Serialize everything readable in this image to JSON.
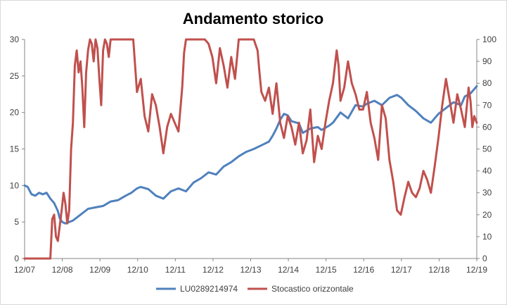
{
  "chart_data": {
    "type": "line",
    "title": "Andamento storico",
    "xlabel": "",
    "ylabel": "",
    "x_ticks": [
      "12/07",
      "12/08",
      "12/09",
      "12/10",
      "12/11",
      "12/12",
      "12/13",
      "12/14",
      "12/15",
      "12/16",
      "12/17",
      "12/18",
      "12/19"
    ],
    "x_range": [
      2007.917,
      2019.917
    ],
    "y_left": {
      "ylim": [
        0,
        30
      ],
      "ticks": [
        "0",
        "5",
        "10",
        "15",
        "20",
        "25",
        "30"
      ]
    },
    "y_right": {
      "ylim": [
        0,
        100
      ],
      "ticks": [
        "0",
        "10",
        "20",
        "30",
        "40",
        "50",
        "60",
        "70",
        "80",
        "90",
        "100"
      ]
    },
    "grid": false,
    "legend_position": "bottom",
    "series": [
      {
        "name": "LU0289214974",
        "axis": "left",
        "color": "#4F81BD",
        "x": [
          2007.917,
          2008.0,
          2008.1,
          2008.2,
          2008.3,
          2008.4,
          2008.5,
          2008.6,
          2008.7,
          2008.8,
          2008.85,
          2008.917,
          2009.0,
          2009.2,
          2009.4,
          2009.6,
          2009.8,
          2010.0,
          2010.2,
          2010.4,
          2010.6,
          2010.75,
          2010.9,
          2011.0,
          2011.2,
          2011.4,
          2011.6,
          2011.8,
          2012.0,
          2012.2,
          2012.4,
          2012.6,
          2012.8,
          2013.0,
          2013.2,
          2013.4,
          2013.6,
          2013.8,
          2014.0,
          2014.2,
          2014.4,
          2014.5,
          2014.6,
          2014.7,
          2014.8,
          2014.9,
          2015.0,
          2015.2,
          2015.3,
          2015.5,
          2015.7,
          2015.8,
          2016.0,
          2016.1,
          2016.3,
          2016.5,
          2016.7,
          2016.9,
          2017.0,
          2017.2,
          2017.4,
          2017.6,
          2017.8,
          2017.917,
          2018.1,
          2018.3,
          2018.5,
          2018.7,
          2018.9,
          2019.1,
          2019.3,
          2019.5,
          2019.6,
          2019.75,
          2019.917
        ],
        "values": [
          10.0,
          9.8,
          8.8,
          8.6,
          9.0,
          8.8,
          9.0,
          8.2,
          7.6,
          6.5,
          5.5,
          5.0,
          4.8,
          5.2,
          6.0,
          6.8,
          7.0,
          7.2,
          7.8,
          8.0,
          8.6,
          9.0,
          9.6,
          9.8,
          9.5,
          8.6,
          8.2,
          9.2,
          9.6,
          9.2,
          10.4,
          11.0,
          11.8,
          11.5,
          12.6,
          13.2,
          14.0,
          14.6,
          15.0,
          15.5,
          16.0,
          16.8,
          17.8,
          19.0,
          19.8,
          19.6,
          18.8,
          18.5,
          17.2,
          17.8,
          18.0,
          17.6,
          18.2,
          18.6,
          20.0,
          19.2,
          21.0,
          20.8,
          21.2,
          21.6,
          21.0,
          22.0,
          22.4,
          22.0,
          21.0,
          20.2,
          19.2,
          18.6,
          19.8,
          20.6,
          21.4,
          21.0,
          22.2,
          22.6,
          23.6
        ]
      },
      {
        "name": "Stocastico orizzontale",
        "axis": "right",
        "color": "#C0504D",
        "x": [
          2007.917,
          2008.2,
          2008.6,
          2008.65,
          2008.7,
          2008.75,
          2008.8,
          2008.85,
          2008.9,
          2008.95,
          2009.0,
          2009.05,
          2009.1,
          2009.15,
          2009.2,
          2009.25,
          2009.3,
          2009.35,
          2009.4,
          2009.45,
          2009.5,
          2009.55,
          2009.6,
          2009.65,
          2009.7,
          2009.75,
          2009.8,
          2009.85,
          2009.9,
          2009.95,
          2010.0,
          2010.05,
          2010.1,
          2010.15,
          2010.2,
          2010.25,
          2010.3,
          2010.35,
          2010.4,
          2010.45,
          2010.5,
          2010.55,
          2010.6,
          2010.7,
          2010.8,
          2010.9,
          2011.0,
          2011.1,
          2011.2,
          2011.3,
          2011.4,
          2011.5,
          2011.55,
          2011.6,
          2011.7,
          2011.8,
          2011.9,
          2012.0,
          2012.1,
          2012.15,
          2012.2,
          2012.25,
          2012.3,
          2012.4,
          2012.5,
          2012.6,
          2012.7,
          2012.8,
          2012.9,
          2013.0,
          2013.1,
          2013.2,
          2013.3,
          2013.4,
          2013.5,
          2013.6,
          2013.7,
          2013.8,
          2013.9,
          2014.0,
          2014.1,
          2014.15,
          2014.2,
          2014.3,
          2014.4,
          2014.5,
          2014.6,
          2014.7,
          2014.8,
          2014.9,
          2015.0,
          2015.1,
          2015.2,
          2015.3,
          2015.4,
          2015.5,
          2015.6,
          2015.7,
          2015.8,
          2015.9,
          2016.0,
          2016.1,
          2016.2,
          2016.25,
          2016.3,
          2016.4,
          2016.5,
          2016.6,
          2016.7,
          2016.8,
          2016.9,
          2017.0,
          2017.1,
          2017.2,
          2017.3,
          2017.4,
          2017.5,
          2017.6,
          2017.7,
          2017.8,
          2017.9,
          2018.0,
          2018.1,
          2018.2,
          2018.3,
          2018.4,
          2018.5,
          2018.6,
          2018.7,
          2018.8,
          2018.9,
          2019.0,
          2019.1,
          2019.2,
          2019.3,
          2019.4,
          2019.5,
          2019.6,
          2019.7,
          2019.75,
          2019.8,
          2019.85,
          2019.917
        ],
        "values": [
          0,
          0,
          0,
          18,
          20,
          10,
          8,
          15,
          22,
          30,
          25,
          16,
          22,
          50,
          62,
          88,
          95,
          85,
          90,
          78,
          60,
          85,
          95,
          100,
          98,
          90,
          100,
          96,
          82,
          70,
          95,
          100,
          98,
          92,
          100,
          100,
          100,
          100,
          100,
          100,
          100,
          100,
          100,
          100,
          100,
          76,
          82,
          65,
          58,
          75,
          70,
          60,
          54,
          48,
          60,
          66,
          62,
          58,
          78,
          94,
          100,
          100,
          100,
          100,
          100,
          100,
          100,
          98,
          92,
          80,
          96,
          88,
          78,
          92,
          82,
          100,
          100,
          100,
          100,
          100,
          95,
          85,
          76,
          72,
          78,
          66,
          80,
          62,
          55,
          65,
          60,
          52,
          62,
          48,
          54,
          68,
          44,
          56,
          50,
          62,
          72,
          80,
          95,
          88,
          72,
          78,
          90,
          80,
          75,
          68,
          68,
          76,
          62,
          55,
          45,
          70,
          64,
          45,
          35,
          22,
          20,
          28,
          35,
          30,
          28,
          32,
          40,
          36,
          30,
          42,
          55,
          70,
          82,
          72,
          62,
          75,
          68,
          60,
          78,
          72,
          60,
          65,
          62
        ]
      }
    ]
  }
}
